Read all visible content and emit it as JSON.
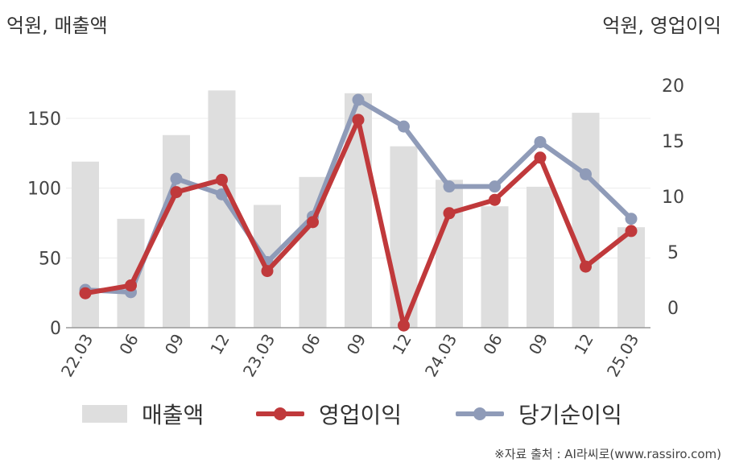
{
  "units": {
    "left": "억원, 매출액",
    "right": "억원, 영업이익"
  },
  "chart_data": {
    "type": "bar+line",
    "categories": [
      "22.03",
      "06",
      "09",
      "12",
      "23.03",
      "06",
      "09",
      "12",
      "24.03",
      "06",
      "09",
      "12",
      "25.03"
    ],
    "left_axis": {
      "ylim": [
        0,
        180
      ],
      "ticks": [
        0,
        50,
        100,
        150
      ]
    },
    "right_axis": {
      "ylim": [
        -1.8,
        20.8
      ],
      "ticks": [
        0,
        5,
        10,
        15,
        20
      ]
    },
    "series": [
      {
        "name": "매출액",
        "kind": "bar",
        "axis": "left",
        "color": "#dedede",
        "values": [
          119,
          78,
          138,
          170,
          88,
          108,
          168,
          130,
          106,
          87,
          101,
          154,
          72
        ]
      },
      {
        "name": "영업이익",
        "kind": "line",
        "axis": "right",
        "color": "#c0393b",
        "values": [
          1.3,
          2.0,
          10.4,
          11.5,
          3.3,
          7.7,
          16.9,
          -1.6,
          8.5,
          9.7,
          13.5,
          3.7,
          6.9
        ]
      },
      {
        "name": "당기순이익",
        "kind": "line",
        "axis": "right",
        "color": "#8f9bb8",
        "values": [
          1.6,
          1.4,
          11.6,
          10.2,
          4.1,
          8.2,
          18.7,
          16.3,
          10.9,
          10.9,
          14.9,
          12.0,
          8.0
        ]
      }
    ],
    "legend": "bottom",
    "grid": true
  },
  "source": "※자료 출처 : AI라씨로(www.rassiro.com)"
}
